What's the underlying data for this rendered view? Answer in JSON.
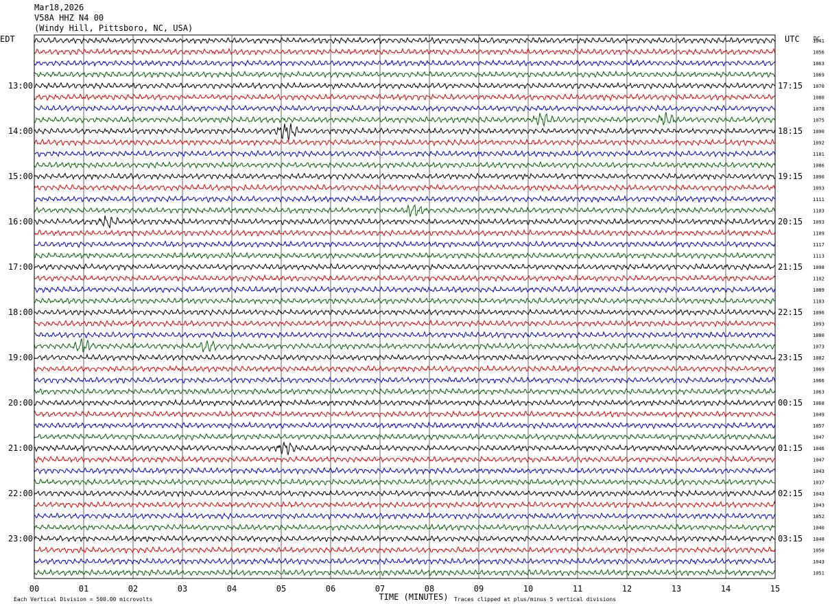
{
  "header": {
    "date": "Mar18,2026",
    "station": "V58A HHZ N4 00",
    "location": "(Windy Hill, Pittsboro, NC, USA)"
  },
  "axis_labels": {
    "left_zone": "EDT",
    "right_zone": "UTC",
    "rightmost_header": "DC",
    "x_title": "TIME (MINUTES)"
  },
  "footer": {
    "scale_note": "Each Vertical Division =  500.00 microvolts",
    "clip_note": "Traces clipped at plus/minus 5 vertical divisions"
  },
  "colors": {
    "trace_cycle": [
      "#000000",
      "#e00000",
      "#0000d0",
      "#006000"
    ],
    "grid": "#000000",
    "background": "#ffffff"
  },
  "chart_data": {
    "type": "line",
    "subtype": "helicorder",
    "title": "V58A HHZ N4 00",
    "xlabel": "TIME (MINUTES)",
    "xlim": [
      0,
      15
    ],
    "x_ticks": [
      "00",
      "01",
      "02",
      "03",
      "04",
      "05",
      "06",
      "07",
      "08",
      "09",
      "10",
      "11",
      "12",
      "13",
      "14",
      "15"
    ],
    "trace_minutes": 15,
    "row_count": 48,
    "left_hour_labels": [
      "13:00",
      "14:00",
      "15:00",
      "16:00",
      "17:00",
      "18:00",
      "19:00",
      "20:00",
      "21:00",
      "22:00",
      "23:00"
    ],
    "left_label_rows": [
      4,
      8,
      12,
      16,
      20,
      24,
      28,
      32,
      36,
      40,
      44
    ],
    "right_hour_labels": [
      "17:15",
      "18:15",
      "19:15",
      "20:15",
      "21:15",
      "22:15",
      "23:15",
      "00:15",
      "01:15",
      "02:15",
      "03:15"
    ],
    "right_label_rows": [
      4,
      8,
      12,
      16,
      20,
      24,
      28,
      32,
      36,
      40,
      44
    ],
    "dc_offsets": [
      "1041",
      "1056",
      "1063",
      "1069",
      "1070",
      "1080",
      "1078",
      "1075",
      "1090",
      "1092",
      "1101",
      "1086",
      "1090",
      "1093",
      "1111",
      "1103",
      "1093",
      "1109",
      "1117",
      "1113",
      "1098",
      "1102",
      "1089",
      "1103",
      "1096",
      "1093",
      "1080",
      "1073",
      "1082",
      "1069",
      "1066",
      "1063",
      "1068",
      "1049",
      "1057",
      "1047",
      "1046",
      "1047",
      "1043",
      "1037",
      "1043",
      "1043",
      "1052",
      "1040",
      "1048",
      "1050",
      "1043",
      "1051"
    ],
    "events": [
      {
        "row": 8,
        "minute": 5.1,
        "note": "large burst"
      },
      {
        "row": 7,
        "minute": 12.8,
        "note": "burst"
      },
      {
        "row": 7,
        "minute": 10.3,
        "note": "burst"
      },
      {
        "row": 16,
        "minute": 1.5,
        "note": "spike"
      },
      {
        "row": 15,
        "minute": 7.7,
        "note": "burst"
      },
      {
        "row": 27,
        "minute": 1.0,
        "note": "spike"
      },
      {
        "row": 27,
        "minute": 3.5,
        "note": "spike"
      },
      {
        "row": 36,
        "minute": 5.1,
        "note": "spike"
      }
    ]
  }
}
